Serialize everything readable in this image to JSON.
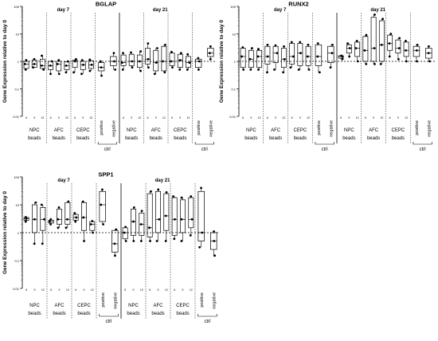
{
  "chart_data": [
    {
      "type": "box",
      "title": "BGLAP",
      "ylabel": "Gene Expression relative to day 0",
      "yscale": "log",
      "ylim": [
        0.01,
        100
      ],
      "yticks": [
        "0.01",
        "0.1",
        "1",
        "10",
        "100"
      ],
      "reference_line": 1,
      "timepoints": [
        "day 7",
        "day 21"
      ],
      "group_labels": [
        [
          "NPC",
          "beads"
        ],
        [
          "AFC",
          "beads"
        ],
        [
          "CEPC",
          "beads"
        ]
      ],
      "ctrl_labels": [
        "positive",
        "negative"
      ],
      "ctrl_bracket_label": "ctrl",
      "group_sublabels": [
        "6",
        "9",
        "12"
      ],
      "panels": {
        "day 7": {
          "groups": [
            [
              {
                "min": 0.5,
                "q1": 0.55,
                "med": 0.8,
                "q3": 1.0,
                "max": 1.1
              },
              {
                "min": 0.6,
                "q1": 0.6,
                "med": 0.8,
                "q3": 1.1,
                "max": 1.2
              },
              {
                "min": 0.5,
                "q1": 0.55,
                "med": 0.7,
                "q3": 1.2,
                "max": 1.6
              }
            ],
            [
              {
                "min": 0.35,
                "q1": 0.5,
                "med": 0.7,
                "q3": 1.0,
                "max": 1.0
              },
              {
                "min": 0.35,
                "q1": 0.45,
                "med": 0.8,
                "q3": 1.0,
                "max": 1.1
              },
              {
                "min": 0.4,
                "q1": 0.5,
                "med": 0.7,
                "q3": 0.95,
                "max": 1.0
              }
            ],
            [
              {
                "min": 0.4,
                "q1": 0.6,
                "med": 1.0,
                "q3": 1.1,
                "max": 1.2
              },
              {
                "min": 0.35,
                "q1": 0.5,
                "med": 0.75,
                "q3": 1.0,
                "max": 1.1
              },
              {
                "min": 0.45,
                "q1": 0.55,
                "med": 0.75,
                "q3": 1.05,
                "max": 1.15
              }
            ]
          ],
          "ctrl": [
            {
              "min": 0.3,
              "q1": 0.45,
              "med": 0.6,
              "q3": 0.9,
              "max": 1.0
            },
            {
              "min": 0.5,
              "q1": 0.7,
              "med": 1.0,
              "q3": 1.5,
              "max": 2.0
            }
          ]
        },
        "day 21": {
          "groups": [
            [
              {
                "min": 0.5,
                "q1": 0.7,
                "med": 0.9,
                "q3": 1.7,
                "max": 2.0
              },
              {
                "min": 0.6,
                "q1": 0.7,
                "med": 1.0,
                "q3": 1.8,
                "max": 2.1
              },
              {
                "min": 0.45,
                "q1": 0.6,
                "med": 1.0,
                "q3": 1.7,
                "max": 2.3
              }
            ],
            [
              {
                "min": 0.6,
                "q1": 0.8,
                "med": 1.2,
                "q3": 3.0,
                "max": 4.5
              },
              {
                "min": 0.35,
                "q1": 0.45,
                "med": 0.9,
                "q3": 2.5,
                "max": 3.0
              },
              {
                "min": 0.4,
                "q1": 0.45,
                "med": 1.0,
                "q3": 3.5,
                "max": 4.0
              }
            ],
            [
              {
                "min": 0.6,
                "q1": 0.7,
                "med": 1.0,
                "q3": 2.0,
                "max": 2.2
              },
              {
                "min": 0.5,
                "q1": 0.6,
                "med": 1.1,
                "q3": 1.8,
                "max": 2.0
              },
              {
                "min": 0.5,
                "q1": 0.6,
                "med": 0.9,
                "q3": 1.5,
                "max": 1.8
              }
            ]
          ],
          "ctrl": [
            {
              "min": 0.5,
              "q1": 0.6,
              "med": 1.0,
              "q3": 1.2,
              "max": 1.3
            },
            {
              "min": 1.2,
              "q1": 1.5,
              "med": 2.0,
              "q3": 3.0,
              "max": 3.5
            }
          ]
        }
      }
    },
    {
      "type": "box",
      "title": "RUNX2",
      "ylabel": "Gene Expression relative to day 0",
      "yscale": "log",
      "ylim": [
        0.01,
        100
      ],
      "yticks": [
        "0.01",
        "0.1",
        "1",
        "10",
        "100"
      ],
      "reference_line": 1,
      "timepoints": [
        "day 7",
        "day 21"
      ],
      "group_labels": [
        [
          "NPC",
          "beads"
        ],
        [
          "AFC",
          "beads"
        ],
        [
          "CEPC",
          "beads"
        ]
      ],
      "ctrl_labels": [
        "positive",
        "negative"
      ],
      "ctrl_bracket_label": "ctrl",
      "group_sublabels": [
        "6",
        "9",
        "12"
      ],
      "panels": {
        "day 7": {
          "groups": [
            [
              {
                "min": 0.5,
                "q1": 0.6,
                "med": 1.5,
                "q3": 3.0,
                "max": 3.2
              },
              {
                "min": 0.5,
                "q1": 0.6,
                "med": 1.2,
                "q3": 2.5,
                "max": 3.0
              },
              {
                "min": 0.5,
                "q1": 0.6,
                "med": 1.5,
                "q3": 2.5,
                "max": 2.8
              }
            ],
            [
              {
                "min": 0.4,
                "q1": 0.8,
                "med": 1.5,
                "q3": 3.5,
                "max": 4.0
              },
              {
                "min": 0.5,
                "q1": 0.9,
                "med": 2.0,
                "q3": 3.5,
                "max": 3.8
              },
              {
                "min": 0.4,
                "q1": 0.6,
                "med": 1.2,
                "q3": 3.0,
                "max": 3.5
              }
            ],
            [
              {
                "min": 0.6,
                "q1": 0.8,
                "med": 1.5,
                "q3": 4.5,
                "max": 5.0
              },
              {
                "min": 0.5,
                "q1": 0.7,
                "med": 2.0,
                "q3": 4.5,
                "max": 5.0
              },
              {
                "min": 0.5,
                "q1": 0.7,
                "med": 1.5,
                "q3": 3.5,
                "max": 4.0
              }
            ]
          ],
          "ctrl": [
            {
              "min": 0.4,
              "q1": 0.7,
              "med": 1.5,
              "q3": 4.0,
              "max": 4.5
            },
            {
              "min": 0.6,
              "q1": 0.9,
              "med": 2.0,
              "q3": 3.5,
              "max": 4.0
            }
          ]
        },
        "day 21": {
          "groups": [
            [
              {
                "min": 1.2,
                "q1": 1.3,
                "med": 1.5,
                "q3": 1.6,
                "max": 1.6
              },
              {
                "min": 1.5,
                "q1": 2.0,
                "med": 3.0,
                "q3": 4.0,
                "max": 4.5
              },
              {
                "min": 1.0,
                "q1": 1.5,
                "med": 3.0,
                "q3": 5.0,
                "max": 5.5
              }
            ],
            [
              {
                "min": 0.8,
                "q1": 1.0,
                "med": 2.5,
                "q3": 8.0,
                "max": 9.0
              },
              {
                "min": 0.8,
                "q1": 1.0,
                "med": 3.0,
                "q3": 40.0,
                "max": 50.0
              },
              {
                "min": 0.8,
                "q1": 1.0,
                "med": 4.0,
                "q3": 30.0,
                "max": 35.0
              }
            ],
            [
              {
                "min": 1.5,
                "q1": 2.5,
                "med": 4.5,
                "q3": 9.0,
                "max": 10.0
              },
              {
                "min": 1.2,
                "q1": 2.0,
                "med": 3.0,
                "q3": 6.0,
                "max": 7.0
              },
              {
                "min": 1.0,
                "q1": 1.5,
                "med": 2.5,
                "q3": 5.0,
                "max": 5.5
              }
            ]
          ],
          "ctrl": [
            {
              "min": 1.0,
              "q1": 1.5,
              "med": 2.5,
              "q3": 3.5,
              "max": 4.0
            },
            {
              "min": 1.0,
              "q1": 1.3,
              "med": 2.0,
              "q3": 3.0,
              "max": 3.5
            }
          ]
        }
      }
    },
    {
      "type": "box",
      "title": "SPP1",
      "ylabel": "Gene Expression relative to day 0",
      "yscale": "log",
      "ylim": [
        0.01,
        100
      ],
      "yticks": [
        "0.01",
        "0.1",
        "1",
        "10",
        "100"
      ],
      "reference_line": 1,
      "timepoints": [
        "day 7",
        "day 21"
      ],
      "group_labels": [
        [
          "NPC",
          "beads"
        ],
        [
          "AFC",
          "beads"
        ],
        [
          "CEPC",
          "beads"
        ]
      ],
      "ctrl_labels": [
        "positive",
        "negative"
      ],
      "ctrl_bracket_label": "ctrl",
      "group_sublabels": [
        "6",
        "9",
        "12"
      ],
      "panels": {
        "day 7": {
          "groups": [
            [
              {
                "min": 2.5,
                "q1": 2.8,
                "med": 3.2,
                "q3": 3.5,
                "max": 3.6
              },
              {
                "min": 0.4,
                "q1": 1.0,
                "med": 3.0,
                "q3": 10.0,
                "max": 12.0
              },
              {
                "min": 0.4,
                "q1": 1.2,
                "med": 3.0,
                "q3": 8.0,
                "max": 10.0
              }
            ],
            [
              {
                "min": 2.0,
                "q1": 2.2,
                "med": 2.5,
                "q3": 2.8,
                "max": 3.0
              },
              {
                "min": 1.5,
                "q1": 2.0,
                "med": 3.0,
                "q3": 7.0,
                "max": 8.0
              },
              {
                "min": 1.5,
                "q1": 2.0,
                "med": 3.0,
                "q3": 12.0,
                "max": 13.0
              }
            ],
            [
              {
                "min": 2.5,
                "q1": 2.8,
                "med": 3.5,
                "q3": 4.5,
                "max": 5.0
              },
              {
                "min": 0.5,
                "q1": 1.2,
                "med": 3.5,
                "q3": 12.0,
                "max": 13.0
              },
              {
                "min": 1.0,
                "q1": 1.2,
                "med": 2.0,
                "q3": 2.5,
                "max": 2.6
              }
            ]
          ],
          "ctrl": [
            {
              "min": 2.0,
              "q1": 2.5,
              "med": 10.0,
              "q3": 30.0,
              "max": 35.0
            },
            {
              "min": 0.15,
              "q1": 0.2,
              "med": 0.4,
              "q3": 1.2,
              "max": 1.3
            }
          ]
        },
        "day 21": {
          "groups": [
            [
              {
                "min": 0.5,
                "q1": 0.6,
                "med": 1.0,
                "q3": 1.5,
                "max": 1.6
              },
              {
                "min": 0.5,
                "q1": 0.8,
                "med": 2.5,
                "q3": 7.0,
                "max": 8.0
              },
              {
                "min": 0.5,
                "q1": 0.8,
                "med": 2.0,
                "q3": 5.0,
                "max": 6.0
              }
            ],
            [
              {
                "min": 0.5,
                "q1": 0.7,
                "med": 1.5,
                "q3": 25.0,
                "max": 30.0
              },
              {
                "min": 0.5,
                "q1": 1.0,
                "med": 3.0,
                "q3": 30.0,
                "max": 35.0
              },
              {
                "min": 0.5,
                "q1": 1.2,
                "med": 4.0,
                "q3": 25.0,
                "max": 28.0
              }
            ],
            [
              {
                "min": 0.6,
                "q1": 0.8,
                "med": 3.0,
                "q3": 18.0,
                "max": 20.0
              },
              {
                "min": 0.5,
                "q1": 1.0,
                "med": 3.0,
                "q3": 15.0,
                "max": 18.0
              },
              {
                "min": 0.8,
                "q1": 1.5,
                "med": 3.0,
                "q3": 18.0,
                "max": 20.0
              }
            ]
          ],
          "ctrl": [
            {
              "min": 0.3,
              "q1": 0.5,
              "med": 1.0,
              "q3": 30.0,
              "max": 40.0
            },
            {
              "min": 0.15,
              "q1": 0.25,
              "med": 0.5,
              "q3": 1.0,
              "max": 1.1
            }
          ]
        }
      }
    }
  ]
}
